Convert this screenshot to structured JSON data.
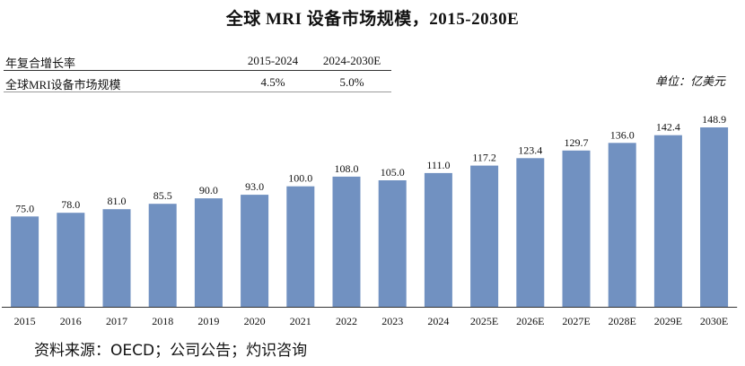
{
  "chart_data": {
    "type": "bar",
    "title": "全球 MRI 设备市场规模，2015-2030E",
    "unit_label": "单位：亿美元",
    "categories": [
      "2015",
      "2016",
      "2017",
      "2018",
      "2019",
      "2020",
      "2021",
      "2022",
      "2023",
      "2024",
      "2025E",
      "2026E",
      "2027E",
      "2028E",
      "2029E",
      "2030E"
    ],
    "values": [
      75.0,
      78.0,
      81.0,
      85.5,
      90.0,
      93.0,
      100.0,
      108.0,
      105.0,
      111.0,
      117.2,
      123.4,
      129.7,
      136.0,
      142.4,
      148.9
    ],
    "value_labels": [
      "75.0",
      "78.0",
      "81.0",
      "85.5",
      "90.0",
      "93.0",
      "100.0",
      "108.0",
      "105.0",
      "111.0",
      "117.2",
      "123.4",
      "129.7",
      "136.0",
      "142.4",
      "148.9"
    ],
    "bar_color": "#7191c1",
    "ylim": [
      0,
      160
    ],
    "grid": false
  },
  "cagr_table": {
    "header": [
      "年复合增长率",
      "2015-2024",
      "2024-2030E"
    ],
    "rows": [
      [
        "全球MRI设备市场规模",
        "4.5%",
        "5.0%"
      ]
    ]
  },
  "source": "资料来源：OECD；公司公告；灼识咨询"
}
